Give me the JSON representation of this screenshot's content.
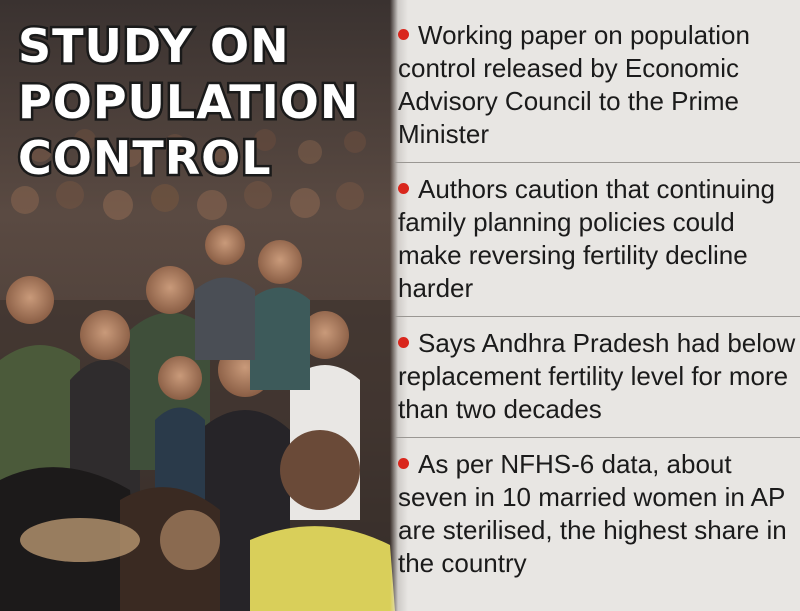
{
  "headline": {
    "lines": [
      "STUDY ON",
      "POPULATION",
      "CONTROL"
    ]
  },
  "bullets": [
    {
      "text": "Working paper on population control released by Economic Advisory Council to the Prime Minister"
    },
    {
      "text": "Authors caution that continuing family planning policies could make reversing fertility decline harder"
    },
    {
      "text": "Says Andhra Pradesh had below replacement fertility level for more than two decades"
    },
    {
      "text": "As per NFHS-6 data, about seven in 10 married women in AP are sterilised, the highest share in the country"
    }
  ],
  "colors": {
    "bullet": "#d9261c",
    "panel_background": "#e8e6e3",
    "headline_fill": "#ffffff",
    "headline_outline": "#1a1a1a"
  }
}
